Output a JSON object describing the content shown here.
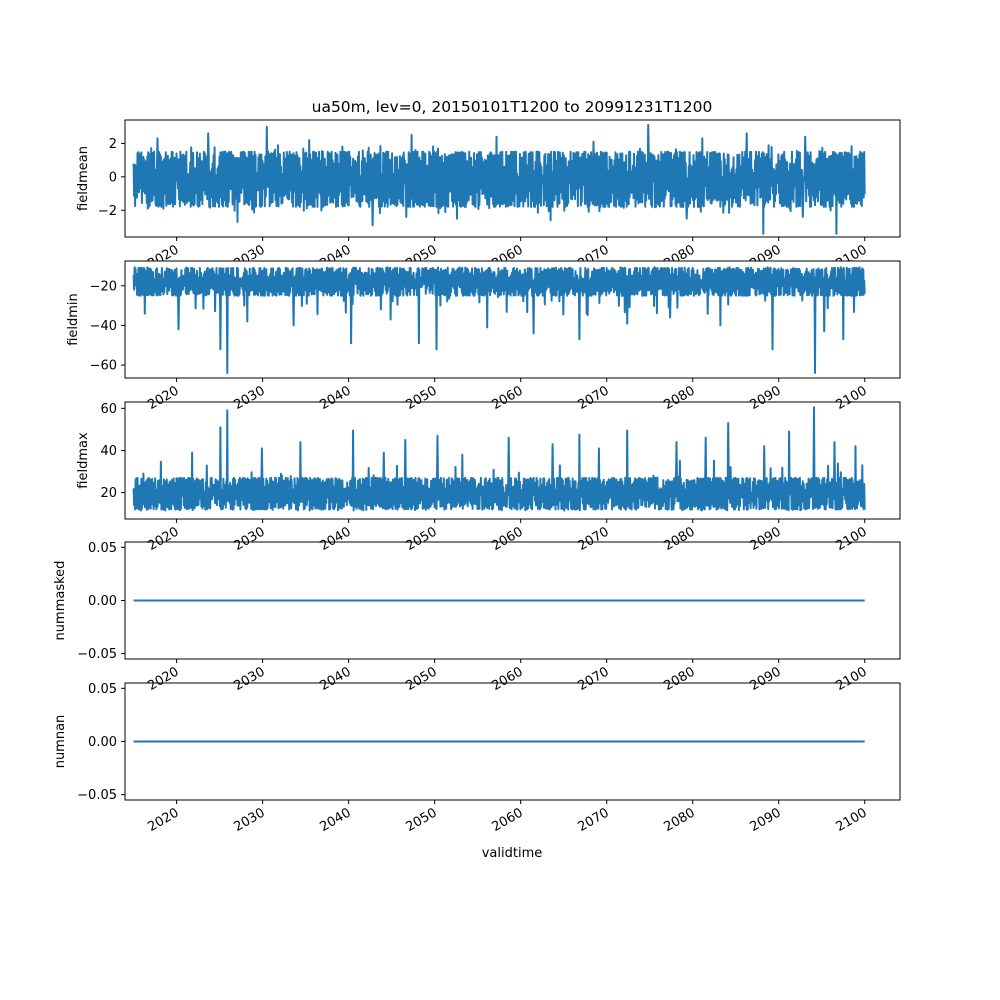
{
  "figure_title": "ua50m, lev=0, 20150101T1200 to 20991231T1200",
  "xlabel": "validtime",
  "line_color": "#1f77b4",
  "x_tick_labels": [
    "2020",
    "2030",
    "2040",
    "2050",
    "2060",
    "2070",
    "2080",
    "2090",
    "2100"
  ],
  "chart_data": [
    {
      "type": "line",
      "name": "fieldmean",
      "ylabel": "fieldmean",
      "x_range": [
        "2015-01-01T12:00",
        "2099-12-31T12:00"
      ],
      "xlim": [
        2014.0,
        2104.1
      ],
      "ylim": [
        -3.6,
        3.4
      ],
      "y_ticks": [
        -2,
        0,
        2
      ],
      "y_tick_labels": [
        "−2",
        "0",
        "2"
      ],
      "band": {
        "typical_low": -1.8,
        "typical_high": 1.5,
        "min": -3.4,
        "max": 3.1
      },
      "spikes": [
        [
          2030.5,
          3.0
        ],
        [
          2074.8,
          3.1
        ],
        [
          2017.8,
          2.3
        ],
        [
          2023.7,
          2.6
        ],
        [
          2047.3,
          2.5
        ],
        [
          2086.3,
          2.6
        ],
        [
          2057.2,
          2.4
        ],
        [
          2093.1,
          2.4
        ],
        [
          2068.5,
          2.1
        ],
        [
          2035.4,
          2.2
        ],
        [
          2081.1,
          2.3
        ],
        [
          2088.2,
          -3.4
        ],
        [
          2096.7,
          -3.4
        ],
        [
          2042.8,
          -2.9
        ],
        [
          2063.5,
          -2.6
        ],
        [
          2027.1,
          -2.7
        ],
        [
          2052.6,
          -2.5
        ],
        [
          2079.3,
          -2.5
        ],
        [
          2092.8,
          -2.4
        ],
        [
          2046.7,
          -2.4
        ]
      ]
    },
    {
      "type": "line",
      "name": "fieldmin",
      "ylabel": "fieldmin",
      "x_range": [
        "2015-01-01T12:00",
        "2099-12-31T12:00"
      ],
      "xlim": [
        2014.0,
        2104.1
      ],
      "ylim": [
        -66.5,
        -7.5
      ],
      "y_ticks": [
        -60,
        -40,
        -20
      ],
      "y_tick_labels": [
        "−60",
        "−40",
        "−20"
      ],
      "band": {
        "typical_low": -25,
        "typical_high": -11,
        "min": -64,
        "max": -9.5
      },
      "spikes": [
        [
          2025.9,
          -64
        ],
        [
          2094.2,
          -64
        ],
        [
          2025.1,
          -52
        ],
        [
          2050.2,
          -52
        ],
        [
          2089.3,
          -52
        ],
        [
          2048.2,
          -49
        ],
        [
          2040.3,
          -49
        ],
        [
          2066.8,
          -47
        ],
        [
          2097.5,
          -47
        ],
        [
          2061.5,
          -44
        ],
        [
          2020.2,
          -42
        ],
        [
          2095.3,
          -43
        ],
        [
          2056.1,
          -41
        ],
        [
          2033.6,
          -40
        ],
        [
          2083.2,
          -40
        ],
        [
          2072.4,
          -39
        ],
        [
          2028.2,
          -38
        ],
        [
          2044.9,
          -37
        ],
        [
          2077.4,
          -36
        ],
        [
          2016.3,
          -34
        ]
      ]
    },
    {
      "type": "line",
      "name": "fieldmax",
      "ylabel": "fieldmax",
      "x_range": [
        "2015-01-01T12:00",
        "2099-12-31T12:00"
      ],
      "xlim": [
        2014.0,
        2104.1
      ],
      "ylim": [
        7.5,
        63.0
      ],
      "y_ticks": [
        20,
        40,
        60
      ],
      "y_tick_labels": [
        "20",
        "40",
        "60"
      ],
      "band": {
        "typical_low": 12,
        "typical_high": 27,
        "min": 10,
        "max": 60.5
      },
      "spikes": [
        [
          2094.1,
          60.5
        ],
        [
          2025.9,
          59
        ],
        [
          2025.1,
          51
        ],
        [
          2084.1,
          53
        ],
        [
          2040.5,
          49.5
        ],
        [
          2072.4,
          49.5
        ],
        [
          2091.2,
          49
        ],
        [
          2066.8,
          47.5
        ],
        [
          2050.3,
          47
        ],
        [
          2081.5,
          46
        ],
        [
          2058.6,
          46
        ],
        [
          2046.6,
          45
        ],
        [
          2034.4,
          44
        ],
        [
          2096.5,
          44
        ],
        [
          2078.1,
          44
        ],
        [
          2063.7,
          43
        ],
        [
          2088.3,
          42
        ],
        [
          2029.9,
          41
        ],
        [
          2069.1,
          41
        ],
        [
          2098.9,
          42
        ],
        [
          2021.8,
          39
        ],
        [
          2044.1,
          39
        ],
        [
          2053.2,
          38
        ]
      ]
    },
    {
      "type": "line",
      "name": "nummasked",
      "ylabel": "nummasked",
      "x_range": [
        "2015-01-01T12:00",
        "2099-12-31T12:00"
      ],
      "xlim": [
        2014.0,
        2104.1
      ],
      "ylim": [
        -0.055,
        0.055
      ],
      "y_ticks": [
        -0.05,
        0.0,
        0.05
      ],
      "y_tick_labels": [
        "−0.05",
        "0.00",
        "0.05"
      ],
      "constant": 0.0
    },
    {
      "type": "line",
      "name": "numnan",
      "ylabel": "numnan",
      "x_range": [
        "2015-01-01T12:00",
        "2099-12-31T12:00"
      ],
      "xlim": [
        2014.0,
        2104.1
      ],
      "ylim": [
        -0.055,
        0.055
      ],
      "y_ticks": [
        -0.05,
        0.0,
        0.05
      ],
      "y_tick_labels": [
        "−0.05",
        "0.00",
        "0.05"
      ],
      "constant": 0.0
    }
  ]
}
